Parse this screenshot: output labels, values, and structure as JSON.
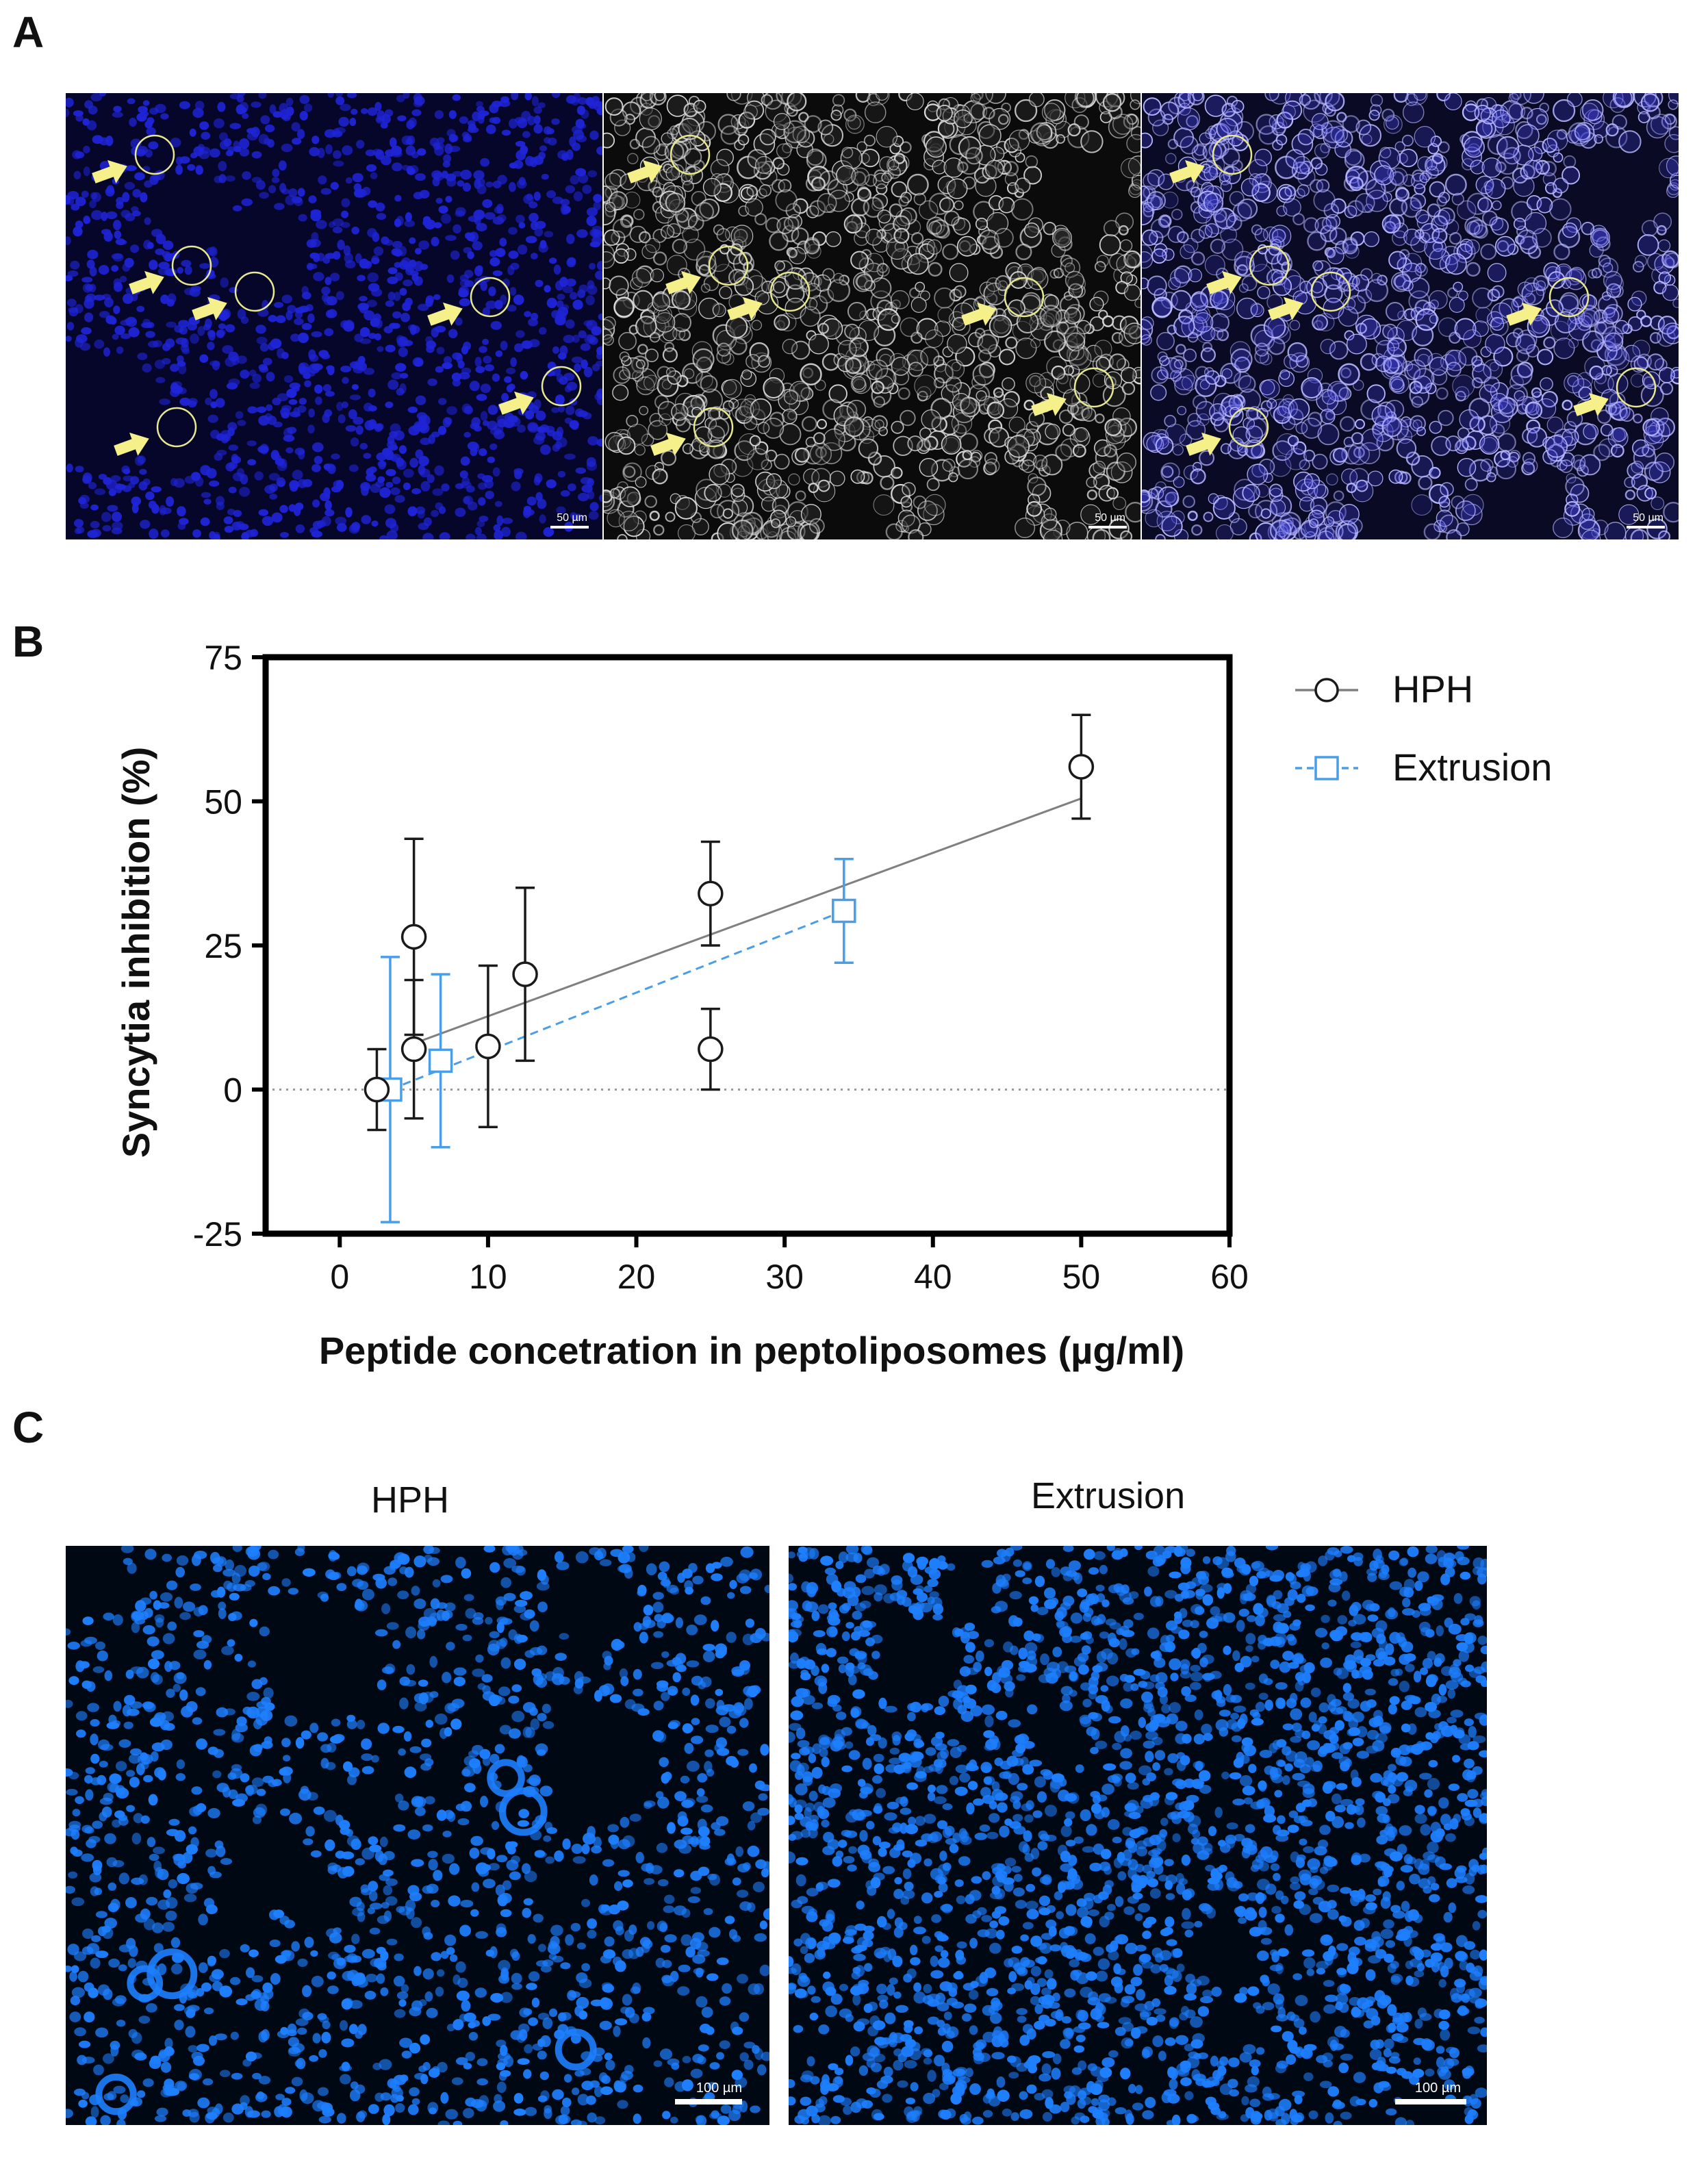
{
  "panels": {
    "a": {
      "letter": "A",
      "scale_bar_text": "50 µm"
    },
    "b": {
      "letter": "B"
    },
    "c": {
      "letter": "C",
      "left_title": "HPH",
      "right_title": "Extrusion",
      "scale_bar_text": "100 µm"
    }
  },
  "colors": {
    "hph": "#1a1a1a",
    "hph_fit": "#808080",
    "extrusion": "#4a9ee8",
    "nuclei_dapi": "#1a1aff",
    "nuclei_c": "#1a7fff",
    "marker_circle": "#e8e890",
    "marker_arrow": "#f5f08a"
  },
  "icons": {
    "arrow": "arrow-right-icon",
    "circle": "circle-marker-icon"
  },
  "chart_data": {
    "type": "scatter",
    "title": "",
    "xlabel": "Peptide concetration in peptoliposomes (µg/ml)",
    "ylabel": "Syncytia inhibition (%)",
    "xlim": [
      -5,
      60
    ],
    "ylim": [
      -25,
      75
    ],
    "xticks": [
      "0",
      "10",
      "20",
      "30",
      "40",
      "50",
      "60"
    ],
    "xtick_values": [
      0,
      10,
      20,
      30,
      40,
      50,
      60
    ],
    "yticks": [
      "-25",
      "0",
      "25",
      "50",
      "75"
    ],
    "ytick_values": [
      -25,
      0,
      25,
      50,
      75
    ],
    "reference_line_y": 0,
    "grid": false,
    "legend_position": "right",
    "series": [
      {
        "name": "HPH",
        "marker": "circle",
        "points": [
          {
            "x": 2.5,
            "y": 0,
            "err": 7
          },
          {
            "x": 5,
            "y": 7,
            "err": 12
          },
          {
            "x": 5,
            "y": 26.5,
            "err": 17
          },
          {
            "x": 10,
            "y": 7.5,
            "err": 14
          },
          {
            "x": 12.5,
            "y": 20,
            "err": 15
          },
          {
            "x": 25,
            "y": 7,
            "err": 7
          },
          {
            "x": 25,
            "y": 34,
            "err": 9
          },
          {
            "x": 50,
            "y": 56,
            "err": 9
          }
        ],
        "fit": {
          "x": [
            5,
            50
          ],
          "y": [
            8,
            50.5
          ]
        }
      },
      {
        "name": "Extrusion",
        "marker": "square",
        "points": [
          {
            "x": 3.4,
            "y": 0,
            "err": 23
          },
          {
            "x": 6.8,
            "y": 5,
            "err": 15
          },
          {
            "x": 34,
            "y": 31,
            "err": 9
          }
        ],
        "fit": {
          "x": [
            3.4,
            34
          ],
          "y": [
            0,
            31
          ]
        }
      }
    ]
  }
}
